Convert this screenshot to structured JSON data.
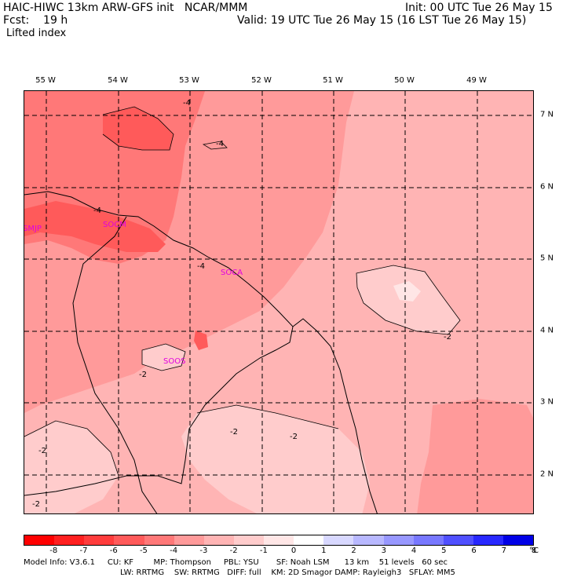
{
  "header": {
    "line1_left": "HAIC-HIWC 13km ARW-GFS init   NCAR/MMM",
    "line1_right": "Init: 00 UTC Tue 26 May 15",
    "line2_left": "Fcst:    19 h",
    "line2_right": "Valid: 19 UTC Tue 26 May 15 (16 LST Tue 26 May 15)",
    "line3": "Lifted index"
  },
  "map": {
    "lon_labels": [
      "55 W",
      "54 W",
      "53 W",
      "52 W",
      "51 W",
      "50 W",
      "49 W"
    ],
    "lat_labels": [
      "7 N",
      "6 N",
      "5 N",
      "4 N",
      "3 N",
      "2 N"
    ],
    "stations": [
      "SMJP",
      "SOCM",
      "SOCA",
      "SOOS"
    ],
    "contour_labels": [
      "-4",
      "-4",
      "-4",
      "-4",
      "-2",
      "-2",
      "-2",
      "-2",
      "-2",
      "-2"
    ],
    "colors": {
      "lt_m5": "#ff5a5a",
      "lt_m4": "#ff7878",
      "lt_m3": "#ff9a9a",
      "lt_m2": "#ffb4b4",
      "lt_m1": "#ffcccc"
    }
  },
  "colorbar": {
    "ticks": [
      "-8",
      "-7",
      "-6",
      "-5",
      "-4",
      "-3",
      "-2",
      "-1",
      "0",
      "1",
      "2",
      "3",
      "4",
      "5",
      "6",
      "7",
      "8"
    ],
    "unit": "°C",
    "colors": [
      "#ff0000",
      "#ff2020",
      "#ff3c3c",
      "#ff5a5a",
      "#ff7878",
      "#ff9a9a",
      "#ffb4b4",
      "#ffcccc",
      "#ffe6e6",
      "#ffffff",
      "#d8d8ff",
      "#b8b8ff",
      "#9898ff",
      "#7878ff",
      "#5050ff",
      "#2828ff",
      "#0000e6"
    ]
  },
  "footer": {
    "line1": "Model Info: V3.6.1     CU: KF        MP: Thompson     PBL: YSU       SF: Noah LSM      13 km    51 levels   60 sec",
    "line2": "LW: RRTMG    SW: RRTMG   DIFF: full    KM: 2D Smagor DAMP: Rayleigh3   SFLAY: MM5"
  }
}
